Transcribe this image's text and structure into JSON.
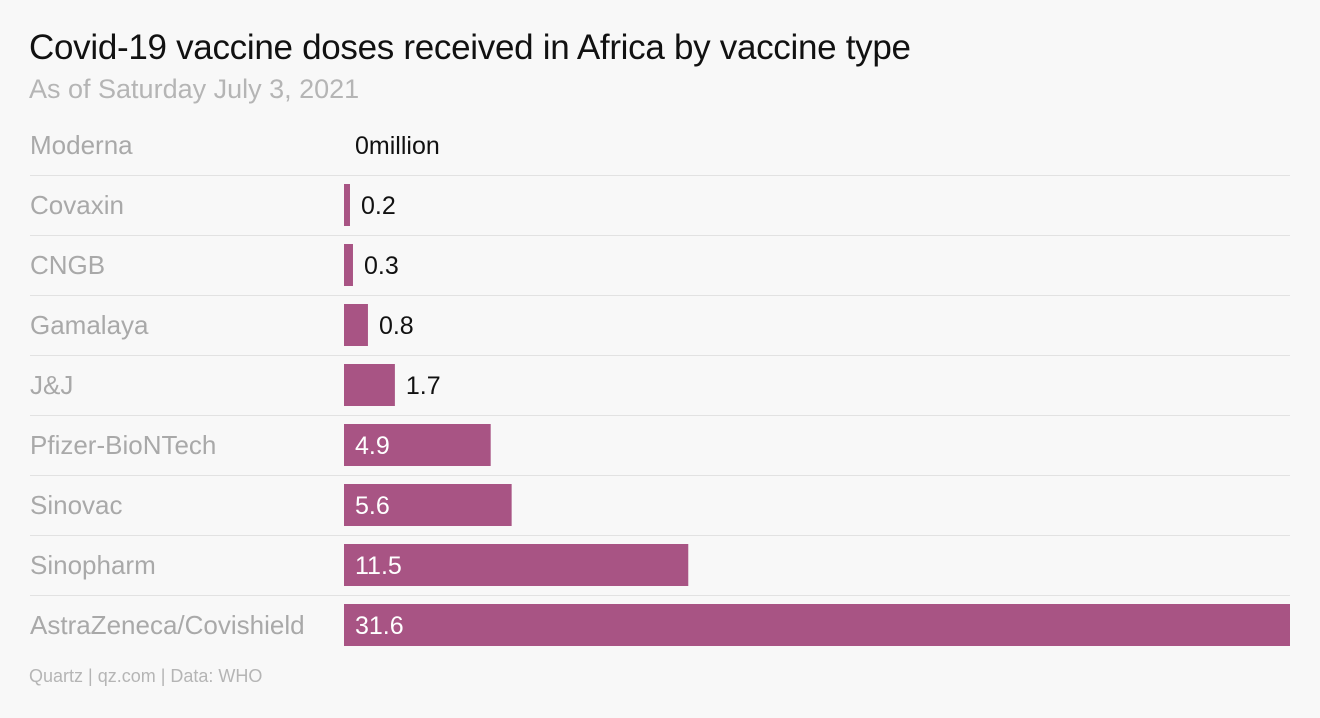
{
  "title": "Covid-19 vaccine doses received in Africa by vaccine type",
  "subtitle": "As of Saturday July 3, 2021",
  "source": "Quartz | qz.com | Data: WHO",
  "colors": {
    "bar": "#a85484",
    "background": "#f8f8f8"
  },
  "chart_data": {
    "type": "bar",
    "orientation": "horizontal",
    "categories": [
      "Moderna",
      "Covaxin",
      "CNGB",
      "Gamalaya",
      "J&J",
      "Pfizer-BioNTech",
      "Sinovac",
      "Sinopharm",
      "AstraZeneca/Covishield"
    ],
    "values": [
      0,
      0.2,
      0.3,
      0.8,
      1.7,
      4.9,
      5.6,
      11.5,
      31.6
    ],
    "value_labels": [
      "0million",
      "0.2",
      "0.3",
      "0.8",
      "1.7",
      "4.9",
      "5.6",
      "11.5",
      "31.6"
    ],
    "xlim": [
      0,
      31.6
    ],
    "unit": "million",
    "grid": false,
    "legend": "none"
  }
}
